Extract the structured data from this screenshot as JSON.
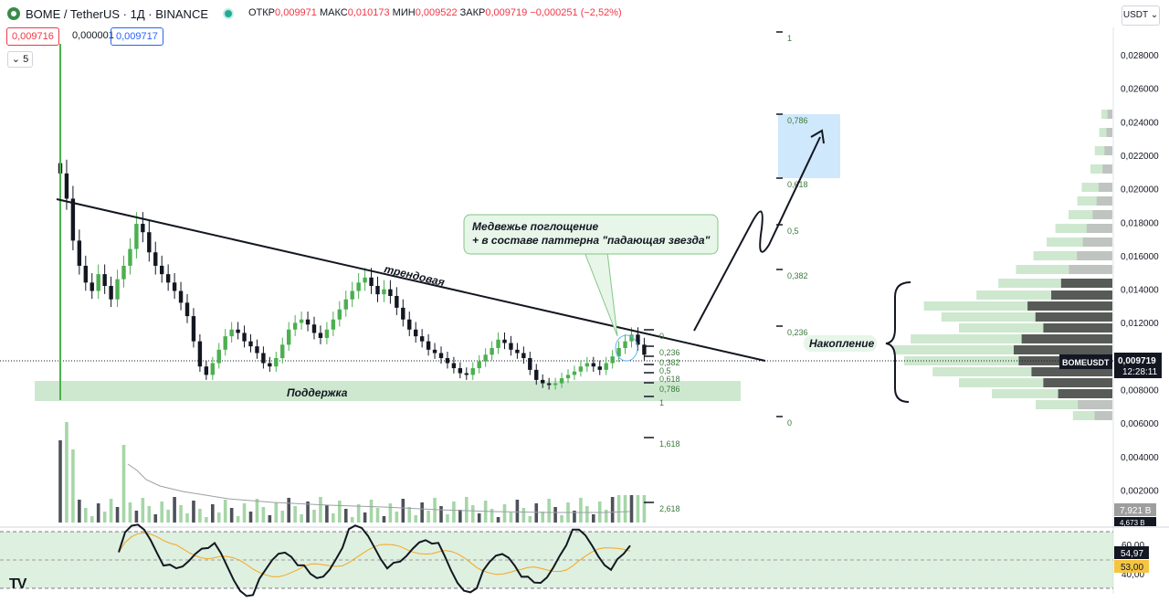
{
  "header": {
    "title": "BOME / TetherUS · 1Д · BINANCE",
    "ohlc": {
      "open_label": "ОТКР",
      "open": "0,009971",
      "high_label": "МАКС",
      "high": "0,010173",
      "low_label": "МИН",
      "low": "0,009522",
      "close_label": "ЗАКР",
      "close": "0,009719",
      "change": "−0,000251 (−2,52%)"
    }
  },
  "quote": {
    "bid": "0,009716",
    "spread": "0,000001",
    "ask": "0,009717"
  },
  "indicators_toggle": {
    "label": "5",
    "icon": "chevron-down-icon"
  },
  "currency_button": "USDT",
  "price_axis": {
    "ticks": [
      "0,028000",
      "0,026000",
      "0,024000",
      "0,022000",
      "0,020000",
      "0,018000",
      "0,016000",
      "0,014000",
      "0,012000",
      "0,010000",
      "0,008000",
      "0,006000",
      "0,004000",
      "0,002000"
    ],
    "symbol_tag": "BOMEUSDT",
    "last_price": "0,009719",
    "countdown": "12:28:11",
    "volume_tag": "7,921 B",
    "volume_ma_tag": "4,673 B"
  },
  "rsi_axis": {
    "ticks": [
      "60,00",
      "40,00"
    ],
    "rsi": "54,97",
    "rsi_ma": "53,00"
  },
  "annotations": {
    "trendline": "трендовая",
    "support": "Поддержка",
    "pattern_line1": "Медвежье поглощение",
    "pattern_line2": "+ в составе паттерна \"падающая звезда\"",
    "accumulation": "Накопление"
  },
  "fib_left": [
    "0",
    "0,236",
    "0,382",
    "0,5",
    "0,618",
    "0,786",
    "1",
    "1,618",
    "2,618"
  ],
  "fib_right": [
    "1",
    "0,786",
    "0,618",
    "0,5",
    "0,382",
    "0,236",
    "0"
  ],
  "branding": "TV",
  "colors": {
    "up": "#4caf50",
    "down": "#131722",
    "support": "#a5d6a7",
    "target": "#bbdefb",
    "rsi": "#131722",
    "rsi_ma": "#f5a623",
    "price_tag": "#131722"
  },
  "chart_data": {
    "type": "candlestick",
    "timeframe": "1Д",
    "ylim": [
      0.0058,
      0.0292
    ],
    "price_series": [
      0.0205,
      0.019,
      0.0165,
      0.015,
      0.014,
      0.0135,
      0.0145,
      0.0138,
      0.013,
      0.0142,
      0.015,
      0.016,
      0.0175,
      0.017,
      0.0158,
      0.015,
      0.0145,
      0.014,
      0.0135,
      0.0128,
      0.012,
      0.0105,
      0.009,
      0.0085,
      0.0092,
      0.01,
      0.0108,
      0.0112,
      0.011,
      0.0105,
      0.0102,
      0.0098,
      0.0092,
      0.009,
      0.0095,
      0.0103,
      0.0112,
      0.0116,
      0.0118,
      0.0115,
      0.011,
      0.0107,
      0.0112,
      0.0118,
      0.0124,
      0.013,
      0.0135,
      0.014,
      0.0143,
      0.0138,
      0.0133,
      0.0136,
      0.0132,
      0.0125,
      0.0118,
      0.0112,
      0.0108,
      0.0105,
      0.01,
      0.0098,
      0.0095,
      0.0092,
      0.0089,
      0.0086,
      0.0085,
      0.0089,
      0.0093,
      0.0097,
      0.0101,
      0.0106,
      0.0104,
      0.01,
      0.0098,
      0.0095,
      0.0088,
      0.0082,
      0.008,
      0.0079,
      0.008,
      0.0083,
      0.0085,
      0.0087,
      0.009,
      0.0092,
      0.009,
      0.0088,
      0.0092,
      0.0096,
      0.0101,
      0.0105,
      0.0109,
      0.0103,
      0.0097
    ],
    "rsi_ticks": [
      60,
      40
    ],
    "rsi_value": 54.97,
    "rsi_ma_value": 53.0
  }
}
